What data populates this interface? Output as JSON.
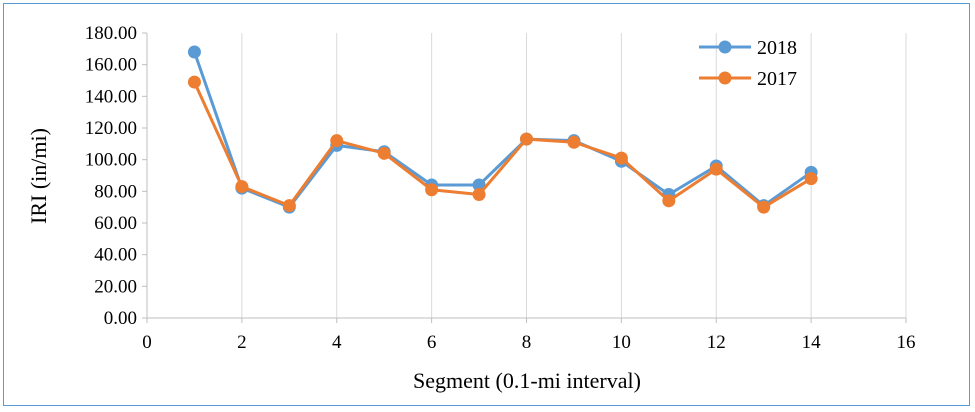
{
  "chart_data": {
    "type": "scatter",
    "xlabel": "Segment (0.1-mi interval)",
    "ylabel": "IRI (in/mi)",
    "xlim": [
      0,
      16
    ],
    "ylim": [
      0,
      180
    ],
    "x_ticks": [
      "0",
      "2",
      "4",
      "6",
      "8",
      "10",
      "12",
      "14",
      "16"
    ],
    "y_ticks": [
      "0.00",
      "20.00",
      "40.00",
      "60.00",
      "80.00",
      "100.00",
      "120.00",
      "140.00",
      "160.00",
      "180.00"
    ],
    "grid": "vertical",
    "legend_position": "top-right",
    "series": [
      {
        "name": "2018",
        "color": "#5b9bd5",
        "x": [
          1,
          2,
          3,
          4,
          5,
          6,
          7,
          8,
          9,
          10,
          11,
          12,
          13,
          14
        ],
        "y": [
          168,
          82,
          70,
          109,
          105,
          84,
          84,
          113,
          112,
          99,
          78,
          96,
          71,
          92
        ]
      },
      {
        "name": "2017",
        "color": "#ed7d31",
        "x": [
          1,
          2,
          3,
          4,
          5,
          6,
          7,
          8,
          9,
          10,
          11,
          12,
          13,
          14
        ],
        "y": [
          149,
          83,
          71,
          112,
          104,
          81,
          78,
          113,
          111,
          101,
          74,
          94,
          70,
          88
        ]
      }
    ]
  }
}
